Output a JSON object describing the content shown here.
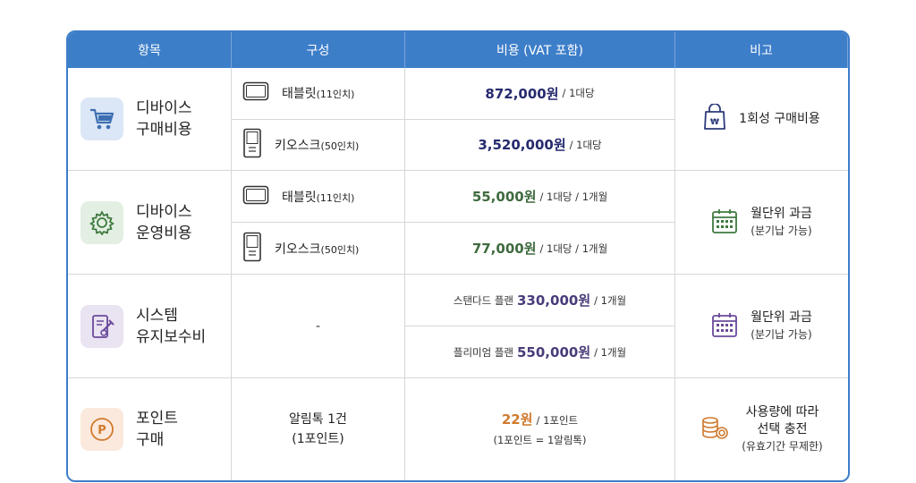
{
  "headers": [
    "항목",
    "구성",
    "비용 (VAT 포함)",
    "비고"
  ],
  "rows": [
    {
      "label": "디바이스\n구매비용",
      "icon": "shopping-cart-icon",
      "components": [
        {
          "name": "태블릿",
          "spec": "(11인치)",
          "icon": "tablet-icon",
          "price": "872,000원",
          "unit": "/ 1대당"
        },
        {
          "name": "키오스크",
          "spec": "(50인치)",
          "icon": "kiosk-icon",
          "price": "3,520,000원",
          "unit": "/ 1대당"
        }
      ],
      "note_main": "1회성 구매비용",
      "note_icon": "money-bag-icon"
    },
    {
      "label": "디바이스\n운영비용",
      "icon": "gear-icon",
      "components": [
        {
          "name": "태블릿",
          "spec": "(11인치)",
          "icon": "tablet-icon",
          "price": "55,000원",
          "unit": "/ 1대당 / 1개월"
        },
        {
          "name": "키오스크",
          "spec": "(50인치)",
          "icon": "kiosk-icon",
          "price": "77,000원",
          "unit": "/ 1대당 / 1개월"
        }
      ],
      "note_main": "월단위 과금",
      "note_sub": "(분기납 가능)",
      "note_icon": "calendar-icon"
    },
    {
      "label": "시스템\n유지보수비",
      "icon": "maintenance-icon",
      "component": "-",
      "plans": [
        {
          "plan": "스탠다드 플랜",
          "price": "330,000원",
          "unit": "/ 1개월"
        },
        {
          "plan": "플리미엄 플랜",
          "price": "550,000원",
          "unit": "/ 1개월"
        }
      ],
      "note_main": "월단위 과금",
      "note_sub": "(분기납 가능)",
      "note_icon": "calendar-icon"
    },
    {
      "label": "포인트\n구매",
      "icon": "point-icon",
      "component_line1": "알림톡 1건",
      "component_line2": "(1포인트)",
      "price": "22원",
      "unit": "/ 1포인트",
      "price_sub": "(1포인트 = 1알림톡)",
      "note_line1": "사용량에 따라",
      "note_line2": "선택 충전",
      "note_sub": "(유효기간 무제한)",
      "note_icon": "coins-icon"
    }
  ],
  "colors": {
    "header": "#3d7ec9",
    "navy": "#262a6e",
    "green": "#3f6b3f",
    "purple": "#4a3c7a",
    "orange": "#d07a2e"
  }
}
